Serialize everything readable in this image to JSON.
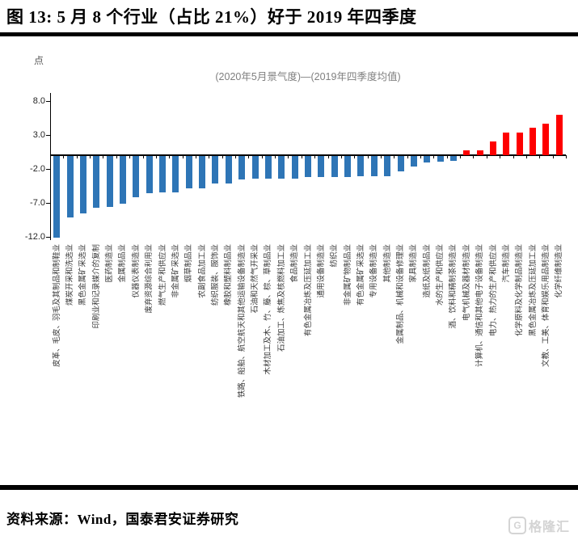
{
  "figure": {
    "title": "图 13:  5 月 8 个行业（占比 21%）好于 2019 年四季度",
    "source": "资料来源：Wind，国泰君安证券研究",
    "watermark": "格隆汇",
    "watermark_icon": "G"
  },
  "chart_data": {
    "type": "bar",
    "title": "(2020年5月景气度)—(2019年四季度均值)",
    "xlabel": "",
    "ylabel": "点",
    "yticks": [
      8.0,
      3.0,
      -2.0,
      -7.0,
      -12.0
    ],
    "ylim": [
      -12.5,
      9.2
    ],
    "grid": false,
    "legend": false,
    "bar_colors": {
      "negative": "#2E75B6",
      "positive": "#FE0000"
    },
    "categories": [
      "皮革、毛皮、羽毛及其制品和制鞋业",
      "煤炭开采和洗选业",
      "黑色金属矿采选业",
      "印刷业和记录媒介的复制",
      "医药制造业",
      "金属制品业",
      "仪器仪表制造业",
      "废弃资源综合利用业",
      "燃气生产和供应业",
      "非金属矿采选业",
      "烟草制品业",
      "农副食品加工业",
      "纺织服装、服饰业",
      "橡胶和塑料制品业",
      "铁路、船舶、航空航天和其他运输设备制造业",
      "石油和天然气开采业",
      "木材加工及木、竹、藤、棕、草制品业",
      "石油加工、炼焦及核燃料加工业",
      "食品制造业",
      "有色金属冶炼及压延加工业",
      "通用设备制造业",
      "纺织业",
      "非金属矿物制品业",
      "有色金属矿采选业",
      "专用设备制造业",
      "其他制造业",
      "金属制品、机械和设备修理业",
      "家具制造业",
      "造纸及纸制品业",
      "水的生产和供应业",
      "酒、饮料和精制茶制造业",
      "电气机械及器材制造业",
      "计算机、通信和其他电子设备制造业",
      "电力、热力的生产和供应业",
      "汽车制造业",
      "化学原料及化学制品制造业",
      "黑色金属冶炼及压延加工业",
      "文教、工美、体育和娱乐用品制造业",
      "化学纤维制造业"
    ],
    "values": [
      -12.0,
      -9.0,
      -8.4,
      -7.6,
      -7.5,
      -7.0,
      -6.1,
      -5.5,
      -5.4,
      -5.4,
      -4.8,
      -4.8,
      -4.1,
      -4.1,
      -3.4,
      -3.3,
      -3.3,
      -3.3,
      -3.3,
      -3.1,
      -3.1,
      -3.1,
      -3.1,
      -3.0,
      -3.0,
      -3.0,
      -2.3,
      -1.6,
      -0.9,
      -0.8,
      -0.7,
      0.7,
      0.7,
      2.0,
      3.3,
      3.3,
      4.0,
      4.7,
      6.0
    ]
  }
}
